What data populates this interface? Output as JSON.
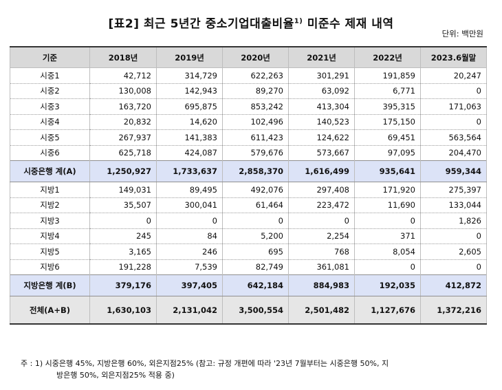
{
  "title": "[표2] 최근 5년간 중소기업대출비율",
  "title_sup": "1)",
  "title_suffix": " 미준수 제재 내역",
  "unit": "단위: 백만원",
  "headers": [
    "기준",
    "2018년",
    "2019년",
    "2020년",
    "2021년",
    "2022년",
    "2023.6월말"
  ],
  "rows": [
    {
      "label": "시중1",
      "values": [
        "42,712",
        "314,729",
        "622,263",
        "301,291",
        "191,859",
        "20,247"
      ]
    },
    {
      "label": "시중2",
      "values": [
        "130,008",
        "142,943",
        "89,270",
        "63,092",
        "6,771",
        "0"
      ]
    },
    {
      "label": "시중3",
      "values": [
        "163,720",
        "695,875",
        "853,242",
        "413,304",
        "395,315",
        "171,063"
      ]
    },
    {
      "label": "시중4",
      "values": [
        "20,832",
        "14,620",
        "102,496",
        "140,523",
        "175,150",
        "0"
      ]
    },
    {
      "label": "시중5",
      "values": [
        "267,937",
        "141,383",
        "611,423",
        "124,622",
        "69,451",
        "563,564"
      ]
    },
    {
      "label": "시중6",
      "values": [
        "625,718",
        "424,087",
        "579,676",
        "573,667",
        "97,095",
        "204,470"
      ]
    },
    {
      "label": "시중은행 계(A)",
      "type": "total",
      "values": [
        "1,250,927",
        "1,733,637",
        "2,858,370",
        "1,616,499",
        "935,641",
        "959,344"
      ]
    },
    {
      "label": "지방1",
      "values": [
        "149,031",
        "89,495",
        "492,076",
        "297,408",
        "171,920",
        "275,397"
      ]
    },
    {
      "label": "지방2",
      "values": [
        "35,507",
        "300,041",
        "61,464",
        "223,472",
        "11,690",
        "133,044"
      ]
    },
    {
      "label": "지방3",
      "values": [
        "0",
        "0",
        "0",
        "0",
        "0",
        "1,826"
      ]
    },
    {
      "label": "지방4",
      "values": [
        "245",
        "84",
        "5,200",
        "2,254",
        "371",
        "0"
      ]
    },
    {
      "label": "지방5",
      "values": [
        "3,165",
        "246",
        "695",
        "768",
        "8,054",
        "2,605"
      ]
    },
    {
      "label": "지방6",
      "values": [
        "191,228",
        "7,539",
        "82,749",
        "361,081",
        "0",
        "0"
      ]
    },
    {
      "label": "지방은행 계(B)",
      "type": "total",
      "values": [
        "379,176",
        "397,405",
        "642,184",
        "884,983",
        "192,035",
        "412,872"
      ]
    },
    {
      "label": "전체(A+B)",
      "type": "grand",
      "values": [
        "1,630,103",
        "2,131,042",
        "3,500,554",
        "2,501,482",
        "1,127,676",
        "1,372,216"
      ]
    }
  ],
  "note_line1": "주 : 1) 시중은행 45%, 지방은행 60%, 외은지점25% (참고: 규정 개편에 따라 '23년 7월부터는 시중은행 50%, 지",
  "note_line2": "방은행 50%, 외은지점25% 적용 중)"
}
